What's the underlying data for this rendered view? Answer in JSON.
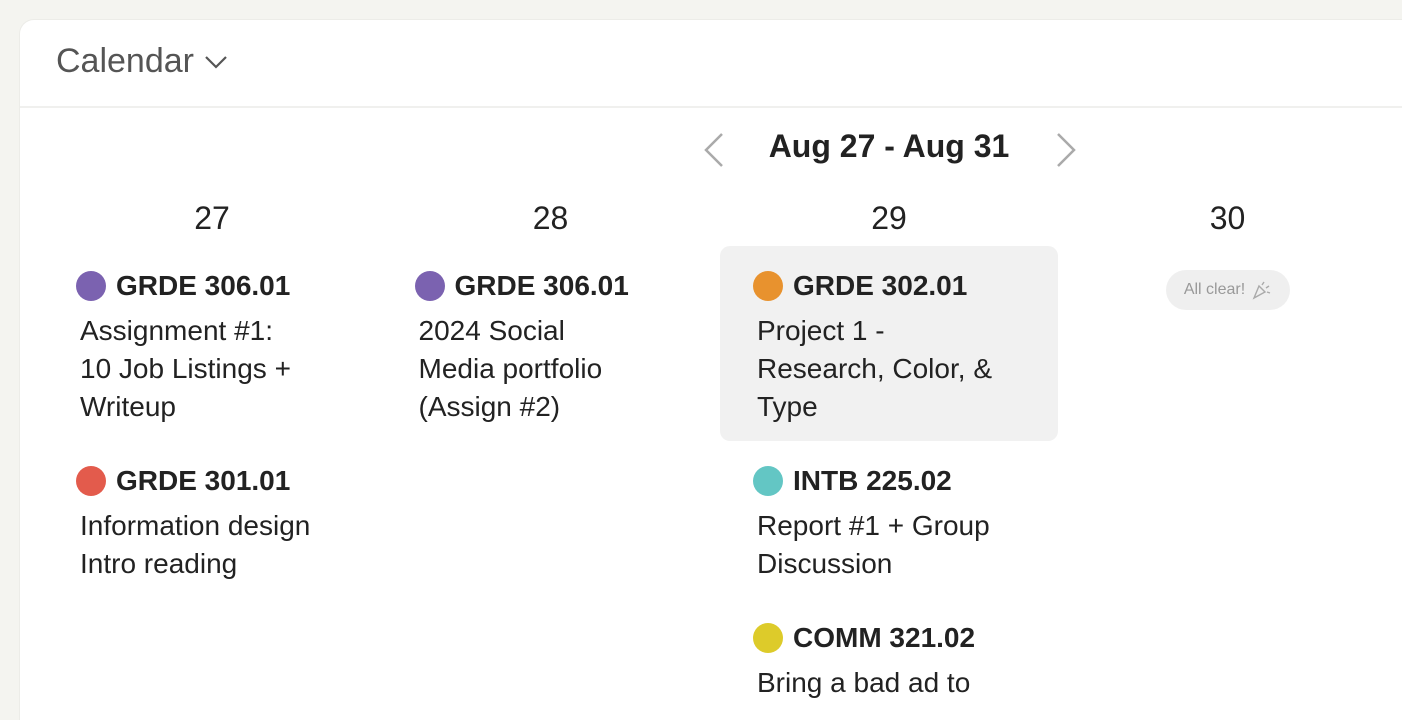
{
  "header": {
    "title": "Calendar"
  },
  "nav": {
    "range": "Aug 27 - Aug 31"
  },
  "days": [
    {
      "day": "27",
      "events": [
        {
          "course": "GRDE 306.01",
          "color": "#7b62b0",
          "title": [
            "Assignment #1:",
            "10 Job Listings +",
            "Writeup"
          ]
        },
        {
          "course": "GRDE 301.01",
          "color": "#e35b4c",
          "title": [
            "Information design",
            "Intro reading"
          ]
        }
      ]
    },
    {
      "day": "28",
      "events": [
        {
          "course": "GRDE 306.01",
          "color": "#7b62b0",
          "title": [
            "2024 Social",
            "Media portfolio",
            "(Assign #2)"
          ]
        }
      ]
    },
    {
      "day": "29",
      "events": [
        {
          "course": "GRDE 302.01",
          "color": "#e8922e",
          "highlighted": true,
          "title": [
            "Project 1 -",
            "Research, Color, &",
            "Type"
          ]
        },
        {
          "course": "INTB 225.02",
          "color": "#63c6c4",
          "title": [
            "Report #1 + Group",
            "Discussion"
          ]
        },
        {
          "course": "COMM 321.02",
          "color": "#ddcb2a",
          "title": [
            "Bring a bad ad to"
          ]
        }
      ]
    },
    {
      "day": "30",
      "empty": "All clear!"
    }
  ]
}
